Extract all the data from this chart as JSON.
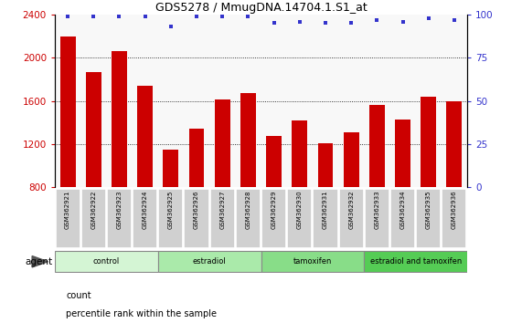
{
  "title": "GDS5278 / MmugDNA.14704.1.S1_at",
  "samples": [
    "GSM362921",
    "GSM362922",
    "GSM362923",
    "GSM362924",
    "GSM362925",
    "GSM362926",
    "GSM362927",
    "GSM362928",
    "GSM362929",
    "GSM362930",
    "GSM362931",
    "GSM362932",
    "GSM362933",
    "GSM362934",
    "GSM362935",
    "GSM362936"
  ],
  "counts": [
    2200,
    1870,
    2060,
    1740,
    1150,
    1340,
    1610,
    1670,
    1280,
    1420,
    1210,
    1310,
    1560,
    1430,
    1640,
    1600
  ],
  "percentile_ranks": [
    99,
    99,
    99,
    99,
    93,
    99,
    99,
    99,
    95,
    96,
    95,
    95,
    97,
    96,
    98,
    97
  ],
  "bar_color": "#cc0000",
  "dot_color": "#3333cc",
  "ylim_left": [
    800,
    2400
  ],
  "ylim_right": [
    0,
    100
  ],
  "yticks_left": [
    800,
    1200,
    1600,
    2000,
    2400
  ],
  "yticks_right": [
    0,
    25,
    50,
    75,
    100
  ],
  "grid_ticks": [
    1200,
    1600,
    2000
  ],
  "groups": [
    {
      "label": "control",
      "start": 0,
      "end": 4,
      "color": "#d4f5d4"
    },
    {
      "label": "estradiol",
      "start": 4,
      "end": 8,
      "color": "#aaeaaa"
    },
    {
      "label": "tamoxifen",
      "start": 8,
      "end": 12,
      "color": "#88dd88"
    },
    {
      "label": "estradiol and tamoxifen",
      "start": 12,
      "end": 16,
      "color": "#55cc55"
    }
  ],
  "legend_count_color": "#cc0000",
  "legend_dot_color": "#3333cc",
  "agent_label": "agent",
  "left_axis_color": "#cc0000",
  "right_axis_color": "#3333cc",
  "background_plot": "#f8f8f8",
  "sample_box_color": "#d0d0d0",
  "sample_box_edge": "#ffffff"
}
